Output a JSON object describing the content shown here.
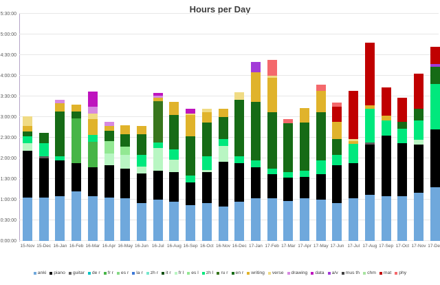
{
  "title": "Hours per Day",
  "colors": {
    "background": "#ffffff",
    "gridline": "#e7e7e7",
    "axis_line": "#b3a3c6",
    "title_color": "#3c3c3c",
    "label_color": "#5a5a5a"
  },
  "chart_data": {
    "type": "bar",
    "subtype": "stacked-column",
    "title": "Hours per Day",
    "xlabel": "",
    "ylabel": "",
    "unit": "minutes per segment (rendered as h:mm:ss axis)",
    "grid": true,
    "legend_position": "bottom",
    "ylim_minutes": [
      0,
      330
    ],
    "y_ticks": [
      "0:00:00",
      "0:30:00",
      "1:00:00",
      "1:30:00",
      "2:00:00",
      "2:30:00",
      "3:00:00",
      "3:30:00",
      "4:00:00",
      "4:30:00",
      "5:00:00",
      "5:30:00"
    ],
    "categories": [
      "15-Nov",
      "15-Dec",
      "16-Jan",
      "16-Feb",
      "16-Mar",
      "16-Apr",
      "16-May",
      "16-Jun",
      "16-Jul",
      "16-Aug",
      "16-Sep",
      "16-Oct",
      "16-Nov",
      "16-Dec",
      "17-Jan",
      "17-Feb",
      "17-Mar",
      "17-Apr",
      "17-May",
      "17-Jun",
      "17-Jul",
      "17-Aug",
      "17-Sep",
      "17-Oct",
      "17-Nov",
      "17-Dec"
    ],
    "series": [
      {
        "name": "anki",
        "color": "#6fa8dc",
        "values": [
          63,
          63,
          65,
          72,
          65,
          63,
          62,
          55,
          60,
          57,
          52,
          55,
          50,
          57,
          62,
          62,
          58,
          62,
          60,
          55,
          62,
          67,
          65,
          65,
          70,
          78
        ]
      },
      {
        "name": "piano",
        "color": "#000000",
        "values": [
          68,
          57,
          52,
          41,
          42,
          47,
          43,
          43,
          42,
          43,
          33,
          45,
          65,
          56,
          45,
          35,
          34,
          31,
          37,
          55,
          51,
          73,
          88,
          77,
          70,
          84
        ]
      },
      {
        "name": "guitar",
        "color": "#5b5b5b",
        "values": [
          0,
          3,
          0,
          0,
          0,
          0,
          0,
          0,
          0,
          0,
          0,
          0,
          0,
          0,
          0,
          0,
          0,
          0,
          0,
          0,
          0,
          3,
          0,
          0,
          0,
          0
        ]
      },
      {
        "name": "de r",
        "color": "#00c4c4",
        "values": [
          0,
          0,
          0,
          0,
          0,
          0,
          0,
          0,
          0,
          0,
          0,
          0,
          0,
          0,
          0,
          0,
          0,
          0,
          0,
          0,
          0,
          0,
          0,
          0,
          0,
          0
        ]
      },
      {
        "name": "fr r",
        "color": "#47b547",
        "values": [
          0,
          0,
          0,
          65,
          37,
          0,
          0,
          0,
          0,
          0,
          0,
          0,
          0,
          0,
          0,
          0,
          0,
          0,
          0,
          0,
          0,
          0,
          0,
          0,
          0,
          0
        ]
      },
      {
        "name": "es r",
        "color": "#85d985",
        "values": [
          0,
          0,
          0,
          0,
          0,
          0,
          0,
          0,
          0,
          0,
          0,
          0,
          0,
          0,
          0,
          0,
          0,
          0,
          0,
          0,
          0,
          0,
          0,
          0,
          0,
          0
        ]
      },
      {
        "name": "la r",
        "color": "#3c78d8",
        "values": [
          0,
          0,
          0,
          0,
          0,
          0,
          0,
          0,
          0,
          0,
          0,
          0,
          0,
          0,
          0,
          0,
          0,
          0,
          0,
          0,
          0,
          0,
          0,
          0,
          0,
          0
        ]
      },
      {
        "name": "zh r",
        "color": "#76e7cd",
        "values": [
          0,
          0,
          0,
          0,
          0,
          0,
          0,
          0,
          0,
          0,
          0,
          0,
          0,
          0,
          0,
          0,
          0,
          0,
          0,
          0,
          0,
          0,
          0,
          0,
          0,
          0
        ]
      },
      {
        "name": "it r",
        "color": "#0f4f0f",
        "values": [
          0,
          0,
          0,
          0,
          0,
          0,
          0,
          0,
          0,
          0,
          0,
          0,
          0,
          0,
          0,
          0,
          0,
          0,
          0,
          0,
          0,
          0,
          0,
          0,
          0,
          0
        ]
      },
      {
        "name": "fr l",
        "color": "#b9f6c3",
        "values": [
          11,
          0,
          0,
          0,
          0,
          17,
          20,
          10,
          33,
          18,
          0,
          3,
          23,
          0,
          0,
          0,
          0,
          0,
          0,
          0,
          0,
          0,
          0,
          0,
          7,
          0
        ]
      },
      {
        "name": "es l",
        "color": "#93e893",
        "values": [
          0,
          0,
          0,
          0,
          0,
          18,
          12,
          0,
          0,
          0,
          0,
          0,
          0,
          0,
          0,
          0,
          0,
          0,
          0,
          0,
          0,
          0,
          0,
          0,
          0,
          0
        ]
      },
      {
        "name": "zh l",
        "color": "#00e87d",
        "values": [
          10,
          19,
          6,
          0,
          10,
          0,
          0,
          17,
          8,
          15,
          10,
          20,
          10,
          10,
          10,
          8,
          8,
          9,
          20,
          15,
          28,
          49,
          22,
          21,
          28,
          66
        ]
      },
      {
        "name": "ru r",
        "color": "#38761d",
        "values": [
          0,
          0,
          0,
          0,
          0,
          0,
          0,
          0,
          60,
          0,
          0,
          0,
          0,
          0,
          0,
          0,
          0,
          0,
          0,
          0,
          0,
          0,
          0,
          0,
          0,
          0
        ]
      },
      {
        "name": "en r",
        "color": "#166b16",
        "values": [
          7,
          15,
          65,
          10,
          0,
          15,
          18,
          30,
          0,
          50,
          57,
          49,
          32,
          82,
          85,
          82,
          71,
          70,
          70,
          23,
          0,
          0,
          0,
          10,
          17,
          25
        ]
      },
      {
        "name": "writing",
        "color": "#e0b32b",
        "values": [
          8,
          0,
          12,
          10,
          23,
          7,
          13,
          12,
          5,
          19,
          31,
          15,
          12,
          0,
          43,
          50,
          0,
          21,
          31,
          25,
          4,
          5,
          7,
          0,
          0,
          0
        ]
      },
      {
        "name": "verse",
        "color": "#f0db84",
        "values": [
          14,
          0,
          0,
          0,
          8,
          0,
          0,
          0,
          0,
          0,
          2,
          5,
          0,
          11,
          0,
          3,
          0,
          0,
          0,
          0,
          3,
          0,
          0,
          0,
          0,
          0
        ]
      },
      {
        "name": "drawing",
        "color": "#d689e0",
        "values": [
          0,
          0,
          5,
          0,
          10,
          6,
          0,
          0,
          3,
          0,
          0,
          0,
          0,
          0,
          0,
          0,
          0,
          0,
          0,
          0,
          0,
          0,
          0,
          0,
          0,
          0
        ]
      },
      {
        "name": "data",
        "color": "#be14be",
        "values": [
          0,
          0,
          0,
          0,
          22,
          0,
          0,
          0,
          4,
          0,
          7,
          0,
          0,
          0,
          0,
          0,
          0,
          0,
          0,
          0,
          0,
          0,
          0,
          0,
          0,
          0
        ]
      },
      {
        "name": "a/v",
        "color": "#a23bd8",
        "values": [
          0,
          0,
          0,
          0,
          0,
          0,
          0,
          0,
          0,
          0,
          0,
          0,
          0,
          0,
          15,
          0,
          0,
          0,
          0,
          0,
          0,
          0,
          0,
          0,
          0,
          4
        ]
      },
      {
        "name": "mus th",
        "color": "#404040",
        "values": [
          0,
          0,
          0,
          0,
          0,
          0,
          0,
          0,
          0,
          0,
          0,
          0,
          0,
          0,
          0,
          0,
          0,
          0,
          0,
          0,
          0,
          0,
          0,
          0,
          0,
          0
        ]
      },
      {
        "name": "chm",
        "color": "#a8e4a0",
        "values": [
          0,
          0,
          0,
          0,
          0,
          0,
          0,
          0,
          0,
          0,
          0,
          0,
          0,
          0,
          0,
          0,
          0,
          0,
          0,
          0,
          0,
          0,
          0,
          0,
          0,
          0
        ]
      },
      {
        "name": "mat",
        "color": "#c00000",
        "values": [
          0,
          0,
          0,
          0,
          0,
          0,
          0,
          0,
          0,
          0,
          0,
          0,
          0,
          0,
          0,
          0,
          0,
          0,
          0,
          22,
          70,
          91,
          41,
          35,
          51,
          25
        ]
      },
      {
        "name": "phy",
        "color": "#f4696c",
        "values": [
          0,
          0,
          0,
          0,
          0,
          0,
          0,
          0,
          0,
          0,
          0,
          0,
          0,
          0,
          0,
          23,
          6,
          0,
          9,
          6,
          0,
          0,
          0,
          0,
          0,
          0
        ]
      }
    ]
  }
}
